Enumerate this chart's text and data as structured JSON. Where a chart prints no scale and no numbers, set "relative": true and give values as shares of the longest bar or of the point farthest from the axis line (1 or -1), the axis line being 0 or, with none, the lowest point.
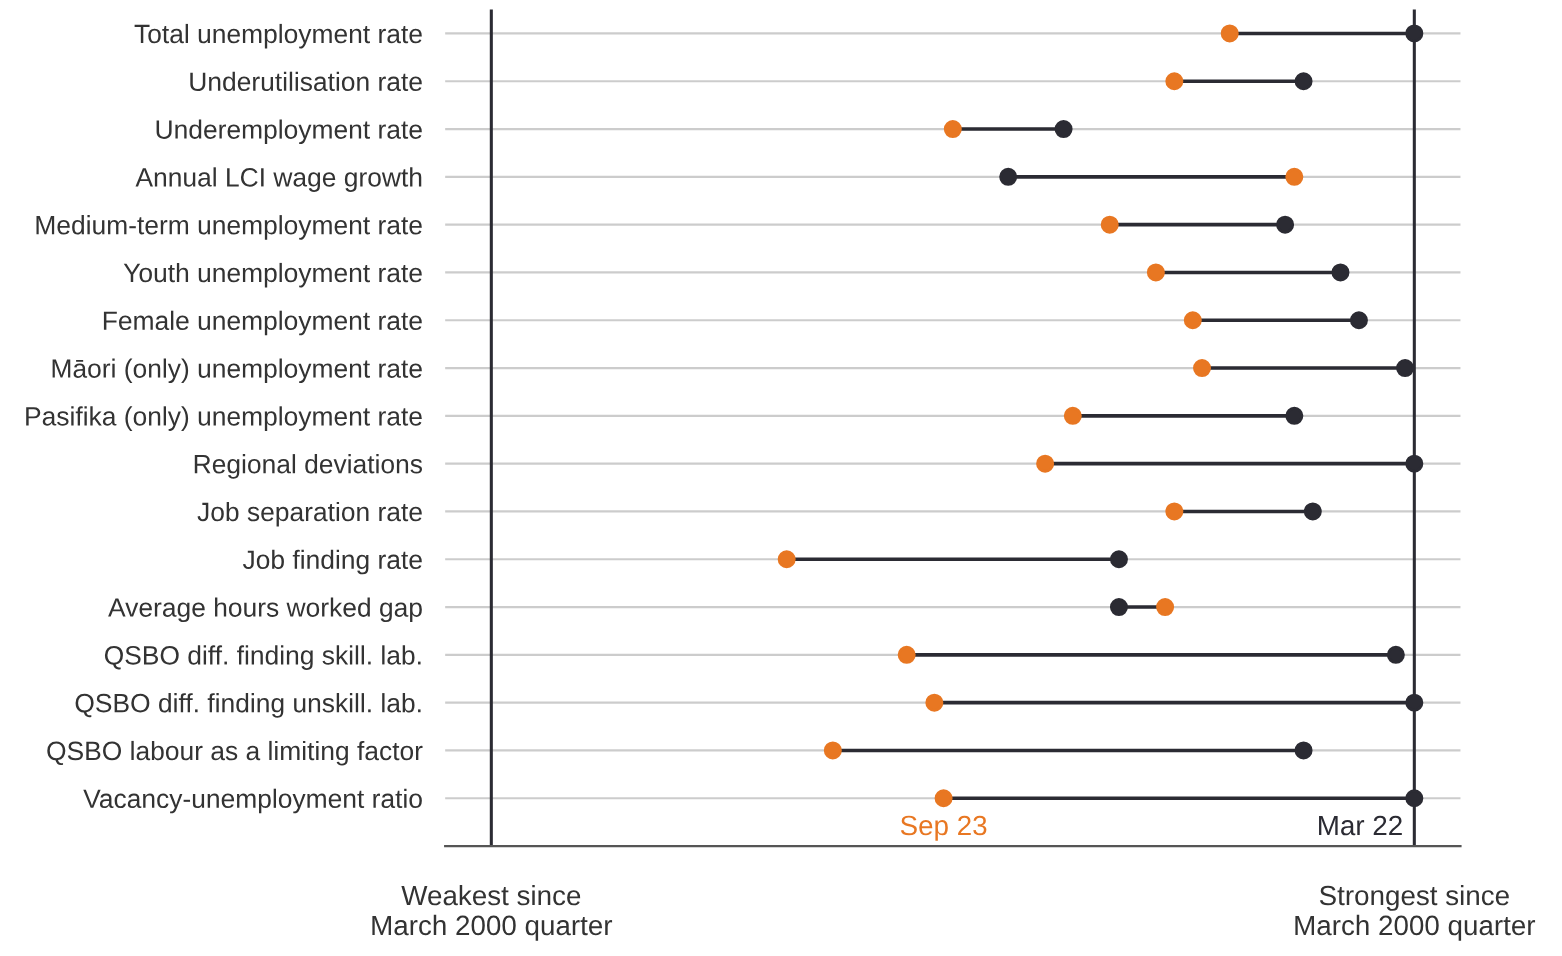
{
  "chart_data": {
    "type": "scatter",
    "orientation": "horizontal",
    "marker": "circle",
    "line_style": "solid",
    "grid": "y",
    "legend": false,
    "categories": [
      "Total unemployment rate",
      "Underutilisation rate",
      "Underemployment rate",
      "Annual LCI wage growth",
      "Medium-term unemployment rate",
      "Youth unemployment rate",
      "Female unemployment rate",
      "Māori (only) unemployment rate",
      "Pasifika (only) unemployment rate",
      "Regional deviations",
      "Job separation rate",
      "Job finding rate",
      "Average hours worked gap",
      "QSBO diff. finding skill. lab.",
      "QSBO diff. finding unskill. lab.",
      "QSBO labour as a limiting factor",
      "Vacancy-unemployment ratio"
    ],
    "series": [
      {
        "name": "Mar 22",
        "color": "#2b2b33",
        "values": [
          1.0,
          0.88,
          0.62,
          0.56,
          0.86,
          0.92,
          0.94,
          0.99,
          0.87,
          1.0,
          0.89,
          0.68,
          0.68,
          0.98,
          1.0,
          0.88,
          1.0
        ]
      },
      {
        "name": "Sep 23",
        "color": "#e87722",
        "values": [
          0.8,
          0.74,
          0.5,
          0.87,
          0.67,
          0.72,
          0.76,
          0.77,
          0.63,
          0.6,
          0.74,
          0.32,
          0.73,
          0.45,
          0.48,
          0.37,
          0.49
        ]
      }
    ],
    "relative": true,
    "ref_lines": [
      {
        "axis": "x",
        "value": 0,
        "color": "#2b2b33",
        "label": "Weakest since\nMarch 2000 quarter"
      },
      {
        "axis": "x",
        "value": 1,
        "color": "#2b2b33",
        "label": "Strongest since\nMarch 2000 quarter"
      }
    ]
  }
}
